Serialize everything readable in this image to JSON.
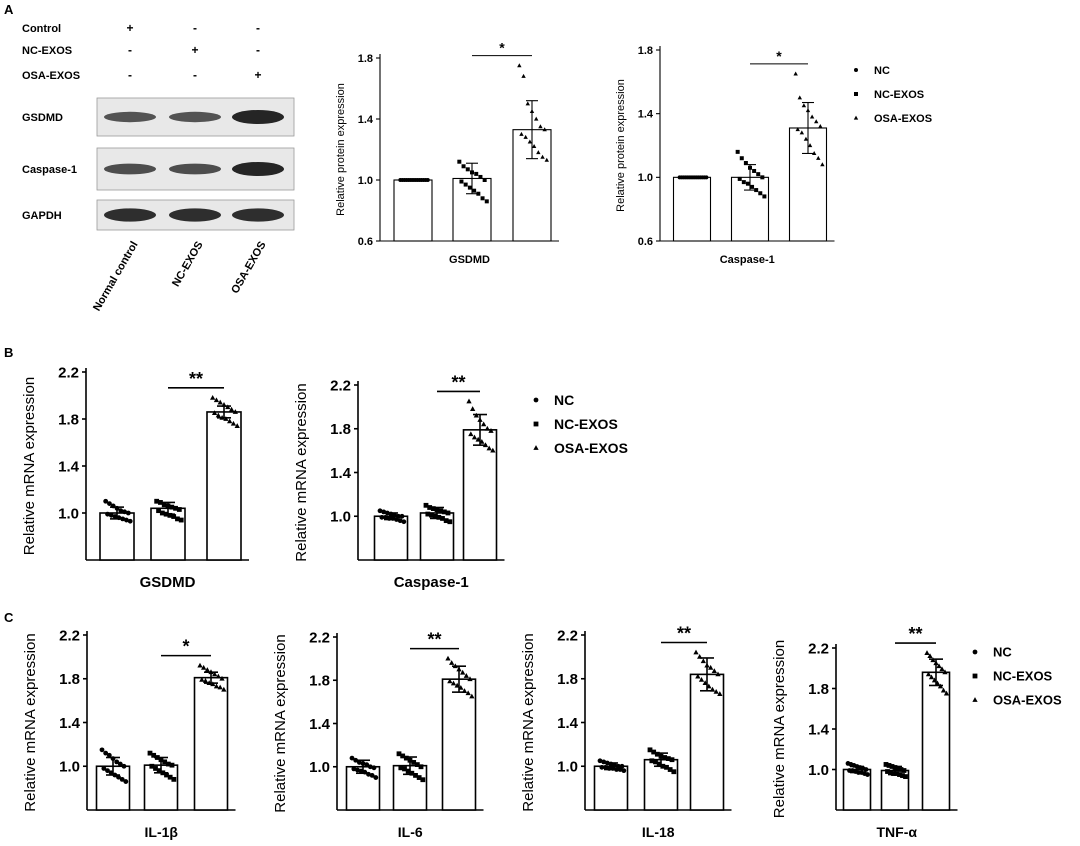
{
  "panels": {
    "a": "A",
    "b": "B",
    "c": "C"
  },
  "blot": {
    "treatments": [
      {
        "label": "Control",
        "signs": [
          "+",
          "-",
          "-"
        ]
      },
      {
        "label": "NC-EXOS",
        "signs": [
          "-",
          "+",
          "-"
        ]
      },
      {
        "label": "OSA-EXOS",
        "signs": [
          "-",
          "-",
          "+"
        ]
      }
    ],
    "proteins": [
      "GSDMD",
      "Caspase-1",
      "GAPDH"
    ],
    "band_intensity": [
      [
        0.55,
        0.55,
        1.0
      ],
      [
        0.6,
        0.6,
        1.0
      ],
      [
        0.9,
        0.9,
        0.9
      ]
    ],
    "lane_labels": [
      "Normal control",
      "NC-EXOS",
      "OSA-EXOS"
    ]
  },
  "legend": {
    "entries": [
      {
        "marker": "circle",
        "label": "NC"
      },
      {
        "marker": "square",
        "label": "NC-EXOS"
      },
      {
        "marker": "triangle",
        "label": "OSA-EXOS"
      }
    ]
  },
  "colors": {
    "bar_fill": "#ffffff",
    "stroke": "#000000",
    "band": "#1a1a1a",
    "blot_bg": "#e8e8e8"
  },
  "chart_data": [
    {
      "id": "a-gsdmd",
      "type": "bar",
      "ylabel": "Relative protein expression",
      "xlabel": "GSDMD",
      "ylim": [
        0.6,
        1.8
      ],
      "yticks": [
        "0.6",
        "1.0",
        "1.4",
        "1.8"
      ],
      "categories": [
        "NC",
        "NC-EXOS",
        "OSA-EXOS"
      ],
      "values": [
        1.0,
        1.01,
        1.33
      ],
      "sd": [
        0.0,
        0.1,
        0.19
      ],
      "points": [
        [
          1,
          1,
          1,
          1,
          1,
          1,
          1,
          1,
          1,
          1,
          1,
          1,
          1,
          1
        ],
        [
          1.12,
          1.09,
          1.07,
          1.05,
          1.04,
          1.02,
          1.0,
          0.99,
          0.97,
          0.95,
          0.93,
          0.91,
          0.88,
          0.86
        ],
        [
          1.75,
          1.68,
          1.5,
          1.45,
          1.4,
          1.35,
          1.33,
          1.3,
          1.28,
          1.25,
          1.22,
          1.18,
          1.15,
          1.13
        ]
      ],
      "significance": "*",
      "sig_pair": [
        1,
        2
      ]
    },
    {
      "id": "a-casp1",
      "type": "bar",
      "ylabel": "Relative protein expression",
      "xlabel": "Caspase-1",
      "ylim": [
        0.6,
        1.8
      ],
      "yticks": [
        "0.6",
        "1.0",
        "1.4",
        "1.8"
      ],
      "categories": [
        "NC",
        "NC-EXOS",
        "OSA-EXOS"
      ],
      "values": [
        1.0,
        1.0,
        1.31
      ],
      "sd": [
        0.0,
        0.08,
        0.16
      ],
      "points": [
        [
          1,
          1,
          1,
          1,
          1,
          1,
          1,
          1,
          1,
          1,
          1,
          1,
          1,
          1
        ],
        [
          1.16,
          1.12,
          1.09,
          1.06,
          1.04,
          1.02,
          1.0,
          0.99,
          0.97,
          0.96,
          0.94,
          0.92,
          0.9,
          0.88
        ],
        [
          1.65,
          1.5,
          1.45,
          1.42,
          1.38,
          1.35,
          1.32,
          1.3,
          1.28,
          1.24,
          1.2,
          1.15,
          1.12,
          1.08
        ]
      ],
      "significance": "*",
      "sig_pair": [
        1,
        2
      ]
    },
    {
      "id": "b-gsdmd",
      "type": "bar",
      "ylabel": "Relative mRNA expression",
      "xlabel": "GSDMD",
      "ylim": [
        0.6,
        2.2
      ],
      "yticks": [
        "1.0",
        "1.4",
        "1.8",
        "2.2"
      ],
      "categories": [
        "NC",
        "NC-EXOS",
        "OSA-EXOS"
      ],
      "values": [
        1.0,
        1.04,
        1.86
      ],
      "sd": [
        0.05,
        0.05,
        0.05
      ],
      "points": [
        [
          1.1,
          1.08,
          1.06,
          1.04,
          1.02,
          1.01,
          1.0,
          0.99,
          0.98,
          0.97,
          0.96,
          0.95,
          0.94,
          0.93
        ],
        [
          1.1,
          1.09,
          1.07,
          1.06,
          1.05,
          1.04,
          1.03,
          1.02,
          1.0,
          0.99,
          0.98,
          0.97,
          0.95,
          0.94
        ],
        [
          1.98,
          1.96,
          1.94,
          1.92,
          1.9,
          1.88,
          1.86,
          1.85,
          1.83,
          1.81,
          1.8,
          1.78,
          1.76,
          1.74
        ]
      ],
      "significance": "**",
      "sig_pair": [
        1,
        2
      ]
    },
    {
      "id": "b-casp1",
      "type": "bar",
      "ylabel": "Relative mRNA expression",
      "xlabel": "Caspase-1",
      "ylim": [
        0.6,
        2.2
      ],
      "yticks": [
        "1.0",
        "1.4",
        "1.8",
        "2.2"
      ],
      "categories": [
        "NC",
        "NC-EXOS",
        "OSA-EXOS"
      ],
      "values": [
        1.0,
        1.03,
        1.79
      ],
      "sd": [
        0.03,
        0.05,
        0.14
      ],
      "points": [
        [
          1.05,
          1.04,
          1.03,
          1.02,
          1.01,
          1.0,
          1.0,
          0.99,
          0.99,
          0.98,
          0.98,
          0.97,
          0.96,
          0.95
        ],
        [
          1.1,
          1.08,
          1.07,
          1.06,
          1.05,
          1.04,
          1.03,
          1.02,
          1.01,
          1.0,
          0.99,
          0.98,
          0.96,
          0.95
        ],
        [
          2.05,
          1.98,
          1.92,
          1.88,
          1.84,
          1.8,
          1.78,
          1.75,
          1.72,
          1.7,
          1.68,
          1.65,
          1.62,
          1.6
        ]
      ],
      "significance": "**",
      "sig_pair": [
        1,
        2
      ]
    },
    {
      "id": "c-il1b",
      "type": "bar",
      "ylabel": "Relative mRNA expression",
      "xlabel": "IL-1β",
      "ylim": [
        0.6,
        2.2
      ],
      "yticks": [
        "1.0",
        "1.4",
        "1.8",
        "2.2"
      ],
      "categories": [
        "NC",
        "NC-EXOS",
        "OSA-EXOS"
      ],
      "values": [
        1.0,
        1.01,
        1.81
      ],
      "sd": [
        0.08,
        0.07,
        0.05
      ],
      "points": [
        [
          1.15,
          1.12,
          1.1,
          1.07,
          1.04,
          1.02,
          1.0,
          0.98,
          0.96,
          0.94,
          0.92,
          0.9,
          0.88,
          0.86
        ],
        [
          1.12,
          1.1,
          1.08,
          1.06,
          1.04,
          1.02,
          1.01,
          1.0,
          0.98,
          0.96,
          0.94,
          0.92,
          0.9,
          0.88
        ],
        [
          1.92,
          1.9,
          1.88,
          1.86,
          1.84,
          1.82,
          1.8,
          1.79,
          1.78,
          1.76,
          1.75,
          1.73,
          1.72,
          1.7
        ]
      ],
      "significance": "*",
      "sig_pair": [
        1,
        2
      ]
    },
    {
      "id": "c-il6",
      "type": "bar",
      "ylabel": "Relative mRNA expression",
      "xlabel": "IL-6",
      "ylim": [
        0.6,
        2.2
      ],
      "yticks": [
        "1.0",
        "1.4",
        "1.8",
        "2.2"
      ],
      "categories": [
        "NC",
        "NC-EXOS",
        "OSA-EXOS"
      ],
      "values": [
        1.0,
        1.01,
        1.81
      ],
      "sd": [
        0.06,
        0.08,
        0.12
      ],
      "points": [
        [
          1.08,
          1.06,
          1.04,
          1.03,
          1.02,
          1.0,
          0.99,
          0.98,
          0.97,
          0.96,
          0.95,
          0.93,
          0.92,
          0.9
        ],
        [
          1.12,
          1.1,
          1.08,
          1.06,
          1.04,
          1.02,
          1.0,
          0.99,
          0.98,
          0.96,
          0.94,
          0.92,
          0.9,
          0.88
        ],
        [
          2.0,
          1.96,
          1.93,
          1.9,
          1.87,
          1.84,
          1.81,
          1.79,
          1.77,
          1.75,
          1.73,
          1.7,
          1.68,
          1.65
        ]
      ],
      "significance": "**",
      "sig_pair": [
        1,
        2
      ]
    },
    {
      "id": "c-il18",
      "type": "bar",
      "ylabel": "Relative mRNA expression",
      "xlabel": "IL-18",
      "ylim": [
        0.6,
        2.2
      ],
      "yticks": [
        "1.0",
        "1.4",
        "1.8",
        "2.2"
      ],
      "categories": [
        "NC",
        "NC-EXOS",
        "OSA-EXOS"
      ],
      "values": [
        1.0,
        1.06,
        1.84
      ],
      "sd": [
        0.03,
        0.06,
        0.15
      ],
      "points": [
        [
          1.05,
          1.04,
          1.03,
          1.02,
          1.01,
          1.0,
          1.0,
          0.99,
          0.99,
          0.98,
          0.98,
          0.97,
          0.97,
          0.96
        ],
        [
          1.15,
          1.13,
          1.11,
          1.09,
          1.08,
          1.07,
          1.06,
          1.05,
          1.04,
          1.02,
          1.0,
          0.99,
          0.97,
          0.95
        ],
        [
          2.04,
          2.0,
          1.96,
          1.92,
          1.9,
          1.87,
          1.84,
          1.82,
          1.79,
          1.76,
          1.73,
          1.7,
          1.68,
          1.66
        ]
      ],
      "significance": "**",
      "sig_pair": [
        1,
        2
      ]
    },
    {
      "id": "c-tnfa",
      "type": "bar",
      "ylabel": "Relative mRNA expression",
      "xlabel": "TNF-α",
      "ylim": [
        0.6,
        2.2
      ],
      "yticks": [
        "1.0",
        "1.4",
        "1.8",
        "2.2"
      ],
      "categories": [
        "NC",
        "NC-EXOS",
        "OSA-EXOS"
      ],
      "values": [
        1.0,
        0.99,
        1.96
      ],
      "sd": [
        0.03,
        0.04,
        0.13
      ],
      "points": [
        [
          1.06,
          1.05,
          1.04,
          1.03,
          1.02,
          1.01,
          1.0,
          0.99,
          0.99,
          0.98,
          0.97,
          0.97,
          0.96,
          0.95
        ],
        [
          1.05,
          1.04,
          1.03,
          1.02,
          1.01,
          1.0,
          0.99,
          0.98,
          0.97,
          0.96,
          0.96,
          0.95,
          0.94,
          0.93
        ],
        [
          2.15,
          2.12,
          2.08,
          2.05,
          2.02,
          1.99,
          1.96,
          1.94,
          1.91,
          1.88,
          1.85,
          1.82,
          1.78,
          1.75
        ]
      ],
      "significance": "**",
      "sig_pair": [
        1,
        2
      ]
    }
  ]
}
